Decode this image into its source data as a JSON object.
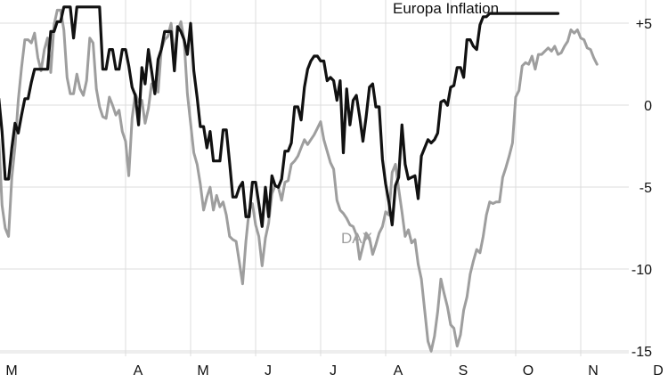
{
  "chart_data": {
    "type": "line",
    "x_ticks": [
      "M",
      "A",
      "M",
      "J",
      "J",
      "A",
      "S",
      "O",
      "N",
      "D"
    ],
    "y_ticks": [
      "+5",
      "0",
      "-5",
      "-10",
      "-15"
    ],
    "y_tick_values": [
      5,
      0,
      -5,
      -10,
      -15
    ],
    "ylim": [
      -16,
      6
    ],
    "grid": true,
    "legend": "inline labels",
    "series": [
      {
        "name": "Europa Inflation",
        "color": "#111111",
        "x": [
          0,
          0.05,
          0.1,
          0.15,
          0.2,
          0.25,
          0.3,
          0.35,
          0.4,
          0.45,
          0.5,
          0.55,
          0.6,
          0.65,
          0.7,
          0.75,
          0.8,
          0.85,
          0.9,
          0.95,
          1.0,
          1.05,
          1.1,
          1.15,
          1.2,
          1.25,
          1.3,
          1.35,
          1.4,
          1.45,
          1.5,
          1.55,
          1.6,
          1.65,
          1.7,
          1.75,
          1.8,
          1.85,
          1.9,
          1.95,
          2.0,
          2.05,
          2.1,
          2.15,
          2.2,
          2.25,
          2.3,
          2.35,
          2.4,
          2.45,
          2.5,
          2.55,
          2.6,
          2.65,
          2.7,
          2.75,
          2.8,
          2.85,
          2.9,
          2.95,
          3.0,
          3.05,
          3.1,
          3.15,
          3.2,
          3.25,
          3.3,
          3.35,
          3.4,
          3.45,
          3.5,
          3.55,
          3.6,
          3.65,
          3.7,
          3.75,
          3.8,
          3.85,
          3.9,
          3.95,
          4.0,
          4.05,
          4.1,
          4.15,
          4.2,
          4.25,
          4.3,
          4.35,
          4.4,
          4.45,
          4.5,
          4.55,
          4.6,
          4.65,
          4.7,
          4.75,
          4.8,
          4.85,
          4.9,
          4.95,
          5.0,
          5.05,
          5.1,
          5.15,
          5.2,
          5.25,
          5.3,
          5.35,
          5.4,
          5.45,
          5.5,
          5.55,
          5.6,
          5.65,
          5.7,
          5.75,
          5.8,
          5.85,
          5.9,
          5.95,
          6.0,
          6.05,
          6.1,
          6.15,
          6.2,
          6.25,
          6.3,
          6.35,
          6.4,
          6.45,
          6.5,
          6.55,
          6.6,
          6.65,
          6.7,
          6.75,
          6.8,
          6.85,
          6.9,
          6.95,
          7.0,
          7.05,
          7.1,
          7.15,
          7.2,
          7.25,
          7.3,
          7.35,
          7.4,
          7.45,
          7.5,
          7.55,
          7.6,
          7.65,
          7.7,
          7.75,
          7.8,
          7.85,
          7.9,
          7.95,
          8.0,
          8.05,
          8.1,
          8.15,
          8.2,
          8.25,
          8.3,
          8.35,
          8.4,
          8.45,
          8.5,
          8.55,
          8.6,
          8.65
        ],
        "y": [
          0,
          0.5,
          -1.5,
          -4.4,
          -4.4,
          -2.5,
          -1,
          -1.6,
          -0.5,
          0.5,
          0.5,
          1.5,
          2.3,
          2.3,
          2.3,
          2.3,
          2.3,
          4.6,
          4.6,
          5.2,
          5.2,
          6.1,
          6.1,
          6.1,
          4.2,
          6.1,
          6.1,
          6.1,
          6.1,
          6.1,
          6.1,
          6.1,
          6.1,
          2.3,
          2.3,
          3.5,
          3.5,
          2.3,
          2.3,
          3.5,
          3.5,
          2.5,
          1.2,
          0.7,
          -1.1,
          2.4,
          1.4,
          3.5,
          2.2,
          0.8,
          2.9,
          3.5,
          4.6,
          4.6,
          4.6,
          2.2,
          4.9,
          4.6,
          4.1,
          3.2,
          5.1,
          2.2,
          0.6,
          -1.2,
          -1.2,
          -2.5,
          -1.5,
          -3.3,
          -3.3,
          -3.3,
          -1.4,
          -1.4,
          -3.4,
          -5.5,
          -5.5,
          -4.9,
          -4.6,
          -6.7,
          -6.7,
          -4.6,
          -4.6,
          -5.9,
          -7.3,
          -4.9,
          -6.7,
          -4.2,
          -4.8,
          -4.9,
          -4.4,
          -2.7,
          -2.7,
          -2.2,
          0.0,
          0.0,
          -0.8,
          1.2,
          2.3,
          2.8,
          3.1,
          3.1,
          2.8,
          2.8,
          1.6,
          1.8,
          1.6,
          0.4,
          1.6,
          -2.8,
          1.1,
          -1.1,
          0.4,
          0.7,
          -0.6,
          -2.1,
          -0.6,
          1.2,
          1.4,
          0.0,
          0.0,
          -3.2,
          -4.7,
          -5.8,
          -7.2,
          -4.8,
          -4.3,
          -1.1,
          -3.5,
          -4.4,
          -4.3,
          -4.2,
          -5.6,
          -3.0,
          -2.5,
          -2.0,
          -2.2,
          -2.0,
          -1.6,
          0.3,
          0.4,
          0.1,
          1.2,
          1.3,
          2.4,
          2.4,
          1.8,
          4.1,
          4.1,
          3.7,
          3.5,
          5.0,
          5.5,
          5.5,
          5.7,
          5.7,
          5.7,
          5.7,
          5.7,
          5.7,
          5.7,
          5.7,
          5.7,
          5.7,
          5.7,
          5.7,
          5.7,
          5.7,
          5.7,
          5.7,
          5.7,
          5.7,
          5.7,
          5.7,
          5.7,
          5.7
        ]
      },
      {
        "name": "DAX",
        "color": "#9e9e9e",
        "x": [
          0,
          0.05,
          0.1,
          0.15,
          0.2,
          0.25,
          0.3,
          0.35,
          0.4,
          0.45,
          0.5,
          0.55,
          0.6,
          0.65,
          0.7,
          0.75,
          0.8,
          0.85,
          0.9,
          0.95,
          1.0,
          1.05,
          1.1,
          1.15,
          1.2,
          1.25,
          1.3,
          1.35,
          1.4,
          1.45,
          1.5,
          1.55,
          1.6,
          1.65,
          1.7,
          1.75,
          1.8,
          1.85,
          1.9,
          1.95,
          2.0,
          2.05,
          2.1,
          2.15,
          2.2,
          2.25,
          2.3,
          2.35,
          2.4,
          2.45,
          2.5,
          2.55,
          2.6,
          2.65,
          2.7,
          2.75,
          2.8,
          2.85,
          2.9,
          2.95,
          3.0,
          3.05,
          3.1,
          3.15,
          3.2,
          3.25,
          3.3,
          3.35,
          3.4,
          3.45,
          3.5,
          3.55,
          3.6,
          3.65,
          3.7,
          3.75,
          3.8,
          3.85,
          3.9,
          3.95,
          4.0,
          4.05,
          4.1,
          4.15,
          4.2,
          4.25,
          4.3,
          4.35,
          4.4,
          4.45,
          4.5,
          4.55,
          4.6,
          4.65,
          4.7,
          4.75,
          4.8,
          4.85,
          4.9,
          4.95,
          5.0,
          5.05,
          5.1,
          5.15,
          5.2,
          5.25,
          5.3,
          5.35,
          5.4,
          5.45,
          5.5,
          5.55,
          5.6,
          5.65,
          5.7,
          5.75,
          5.8,
          5.85,
          5.9,
          5.95,
          6.0,
          6.05,
          6.1,
          6.15,
          6.2,
          6.25,
          6.3,
          6.35,
          6.4,
          6.45,
          6.5,
          6.55,
          6.6,
          6.65,
          6.7,
          6.75,
          6.8,
          6.85,
          6.9,
          6.95,
          7.0,
          7.05,
          7.1,
          7.15,
          7.2,
          7.25,
          7.3,
          7.35,
          7.4,
          7.45,
          7.5,
          7.55,
          7.6,
          7.65,
          7.7,
          7.75,
          7.8,
          7.85,
          7.9,
          7.95,
          8.0,
          8.05,
          8.1,
          8.15,
          8.2,
          8.25,
          8.3,
          8.35,
          8.4,
          8.45,
          8.5,
          8.55,
          8.6,
          8.65,
          8.7,
          8.75,
          8.8,
          8.85,
          8.9,
          8.95,
          9.0,
          9.05,
          9.1,
          9.15,
          9.2,
          9.25
        ],
        "y": [
          0,
          -2.0,
          -6.0,
          -7.4,
          -7.9,
          -4.3,
          -2.4,
          0.4,
          2.4,
          4.1,
          4.1,
          3.9,
          4.5,
          3.0,
          2.2,
          3.5,
          4.2,
          2.1,
          5.0,
          5.9,
          5.9,
          4.7,
          1.8,
          0.8,
          0.8,
          2.0,
          1.1,
          0.7,
          1.6,
          4.2,
          3.9,
          1.1,
          0.0,
          -0.6,
          -0.7,
          0.6,
          0.1,
          -0.5,
          -0.2,
          -1.5,
          -2.1,
          -4.2,
          -0.7,
          0.8,
          0.3,
          0.4,
          -1.0,
          -0.1,
          1.4,
          1.5,
          0.9,
          3.5,
          4.1,
          4.3,
          5.1,
          3.1,
          4.6,
          5.2,
          4.1,
          0.8,
          -1.0,
          -2.8,
          -3.5,
          -4.7,
          -6.3,
          -5.5,
          -4.9,
          -6.3,
          -5.4,
          -6.1,
          -5.8,
          -6.6,
          -7.9,
          -8.1,
          -8.2,
          -9.5,
          -10.8,
          -8.2,
          -6.3,
          -5.9,
          -7.2,
          -7.9,
          -9.7,
          -8.0,
          -7.1,
          -5.3,
          -4.8,
          -4.9,
          -5.7,
          -4.6,
          -4.5,
          -3.5,
          -3.3,
          -3.0,
          -2.5,
          -2.0,
          -2.3,
          -2.0,
          -1.7,
          -1.3,
          -0.9,
          -2.0,
          -2.7,
          -3.4,
          -3.8,
          -5.7,
          -6.3,
          -6.5,
          -6.8,
          -7.2,
          -7.3,
          -7.8,
          -9.3,
          -8.5,
          -7.7,
          -8.0,
          -9.0,
          -8.4,
          -7.7,
          -7.3,
          -6.4,
          -6.6,
          -4.0,
          -3.5,
          -5.0,
          -6.4,
          -7.9,
          -7.5,
          -8.3,
          -8.1,
          -9.6,
          -10.5,
          -12.4,
          -14.3,
          -14.9,
          -14.0,
          -12.5,
          -10.5,
          -11.4,
          -12.2,
          -13.3,
          -13.5,
          -14.6,
          -13.9,
          -12.4,
          -11.6,
          -10.2,
          -9.4,
          -8.7,
          -8.9,
          -7.9,
          -6.6,
          -5.8,
          -5.9,
          -5.8,
          -5.8,
          -4.3,
          -3.7,
          -3.0,
          -2.2,
          0.6,
          1.0,
          2.5,
          2.7,
          2.6,
          3.1,
          2.3,
          3.2,
          3.2,
          3.4,
          3.6,
          3.4,
          3.7,
          3.2,
          3.3,
          3.7,
          4.0,
          4.7,
          4.5,
          4.7,
          4.2,
          4.1,
          3.6,
          3.5,
          3.0,
          2.6
        ]
      }
    ]
  }
}
